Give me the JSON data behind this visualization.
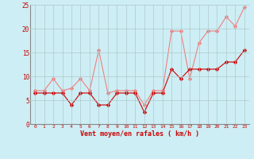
{
  "x": [
    0,
    1,
    2,
    3,
    4,
    5,
    6,
    7,
    8,
    9,
    10,
    11,
    12,
    13,
    14,
    15,
    16,
    17,
    18,
    19,
    20,
    21,
    22,
    23
  ],
  "rafales": [
    7,
    7,
    9.5,
    7,
    7.5,
    9.5,
    7,
    15.5,
    6.5,
    7,
    7,
    7,
    4,
    7,
    7,
    19.5,
    19.5,
    9.5,
    17,
    19.5,
    19.5,
    22.5,
    20.5,
    24.5
  ],
  "moyen": [
    6.5,
    6.5,
    6.5,
    6.5,
    4,
    6.5,
    6.5,
    4,
    4,
    6.5,
    6.5,
    6.5,
    2.5,
    6.5,
    6.5,
    11.5,
    9.5,
    11.5,
    11.5,
    11.5,
    11.5,
    13,
    13,
    15.5
  ],
  "color_rafales": "#f08080",
  "color_moyen": "#cc0000",
  "bg_color": "#cdeef4",
  "grid_color": "#b0c8cc",
  "xlabel": "Vent moyen/en rafales ( km/h )",
  "xlabel_color": "#cc0000",
  "ylim": [
    0,
    25
  ],
  "xlim_min": -0.5,
  "xlim_max": 23.5,
  "yticks": [
    0,
    5,
    10,
    15,
    20,
    25
  ],
  "xticks": [
    0,
    1,
    2,
    3,
    4,
    5,
    6,
    7,
    8,
    9,
    10,
    11,
    12,
    13,
    14,
    15,
    16,
    17,
    18,
    19,
    20,
    21,
    22,
    23
  ],
  "tick_color": "#cc0000",
  "spine_color": "#888888",
  "marker_size": 2.5,
  "line_width": 0.8
}
